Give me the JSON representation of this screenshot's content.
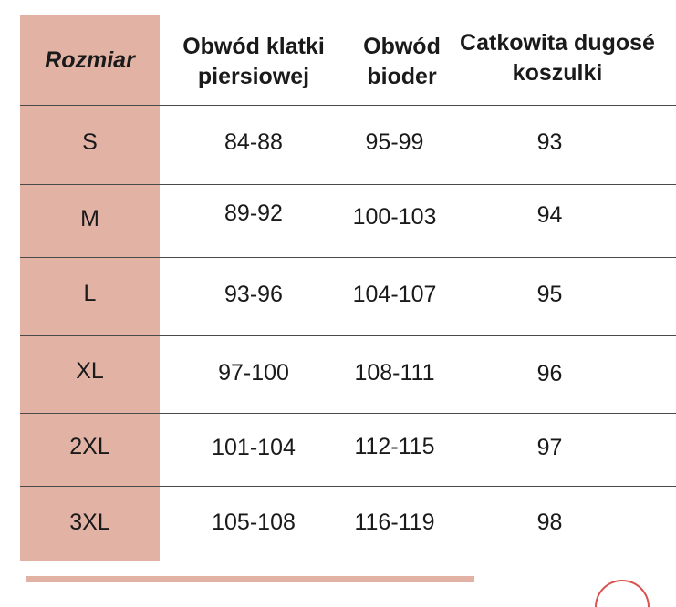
{
  "table": {
    "headers": {
      "size": "Rozmiar",
      "chest": "Obwód klatki piersiowej",
      "hips": "Obwód bioder",
      "length": "Catkowita dugosé koszulki"
    },
    "rows": [
      {
        "size": "S",
        "chest": "84-88",
        "hips": "95-99",
        "length": "93"
      },
      {
        "size": "M",
        "chest": "89-92",
        "hips": "100-103",
        "length": "94"
      },
      {
        "size": "L",
        "chest": "93-96",
        "hips": "104-107",
        "length": "95"
      },
      {
        "size": "XL",
        "chest": "97-100",
        "hips": "108-111",
        "length": "96"
      },
      {
        "size": "2XL",
        "chest": "101-104",
        "hips": "112-115",
        "length": "97"
      },
      {
        "size": "3XL",
        "chest": "105-108",
        "hips": "116-119",
        "length": "98"
      }
    ]
  },
  "colors": {
    "size_column": "#e2b3a5",
    "lines": "#4a4a4a"
  }
}
